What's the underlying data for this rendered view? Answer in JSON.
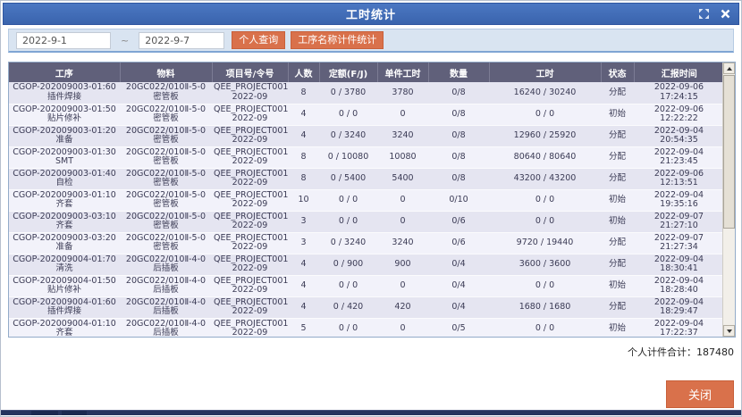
{
  "window": {
    "title": "工时统计"
  },
  "toolbar": {
    "date_from": "2022-9-1",
    "date_separator": "~",
    "date_to": "2022-9-7",
    "personal_query_button": "个人查询",
    "process_piece_stats_button": "工序名称计件统计"
  },
  "table": {
    "columns": [
      "工序",
      "物料",
      "项目号/令号",
      "人数",
      "定额(F/J)",
      "单件工时",
      "数量",
      "工时",
      "状态",
      "汇报时间"
    ],
    "rows": [
      {
        "process_code": "CGOP-202009003-01:60",
        "process_name": "插件焊接",
        "material_code": "20GC022/010Ⅱ-5-0",
        "material_name": "密管板",
        "project": "QEE_PROJECT001",
        "project_period": "2022-09",
        "people": "8",
        "quota": "0 / 3780",
        "unit_hours": "3780",
        "quantity": "0/8",
        "hours": "16240 / 30240",
        "status": "分配",
        "report_time": "2022-09-06 17:24:15"
      },
      {
        "process_code": "CGOP-202009003-01:50",
        "process_name": "贴片修补",
        "material_code": "20GC022/010Ⅱ-5-0",
        "material_name": "密管板",
        "project": "QEE_PROJECT001",
        "project_period": "2022-09",
        "people": "4",
        "quota": "0 / 0",
        "unit_hours": "0",
        "quantity": "0/8",
        "hours": "0 / 0",
        "status": "初始",
        "report_time": "2022-09-06 12:22:22"
      },
      {
        "process_code": "CGOP-202009003-01:20",
        "process_name": "准备",
        "material_code": "20GC022/010Ⅱ-5-0",
        "material_name": "密管板",
        "project": "QEE_PROJECT001",
        "project_period": "2022-09",
        "people": "4",
        "quota": "0 / 3240",
        "unit_hours": "3240",
        "quantity": "0/8",
        "hours": "12960 / 25920",
        "status": "分配",
        "report_time": "2022-09-04 20:54:35"
      },
      {
        "process_code": "CGOP-202009003-01:30",
        "process_name": "SMT",
        "material_code": "20GC022/010Ⅱ-5-0",
        "material_name": "密管板",
        "project": "QEE_PROJECT001",
        "project_period": "2022-09",
        "people": "8",
        "quota": "0 / 10080",
        "unit_hours": "10080",
        "quantity": "0/8",
        "hours": "80640 / 80640",
        "status": "分配",
        "report_time": "2022-09-04 21:23:45"
      },
      {
        "process_code": "CGOP-202009003-01:40",
        "process_name": "自检",
        "material_code": "20GC022/010Ⅱ-5-0",
        "material_name": "密管板",
        "project": "QEE_PROJECT001",
        "project_period": "2022-09",
        "people": "8",
        "quota": "0 / 5400",
        "unit_hours": "5400",
        "quantity": "0/8",
        "hours": "43200 / 43200",
        "status": "分配",
        "report_time": "2022-09-06 12:13:51"
      },
      {
        "process_code": "CGOP-202009003-01:10",
        "process_name": "齐套",
        "material_code": "20GC022/010Ⅱ-5-0",
        "material_name": "密管板",
        "project": "QEE_PROJECT001",
        "project_period": "2022-09",
        "people": "10",
        "quota": "0 / 0",
        "unit_hours": "0",
        "quantity": "0/10",
        "hours": "0 / 0",
        "status": "初始",
        "report_time": "2022-09-04 19:35:16"
      },
      {
        "process_code": "CGOP-202009003-03:10",
        "process_name": "齐套",
        "material_code": "20GC022/010Ⅱ-5-0",
        "material_name": "密管板",
        "project": "QEE_PROJECT001",
        "project_period": "2022-09",
        "people": "3",
        "quota": "0 / 0",
        "unit_hours": "0",
        "quantity": "0/6",
        "hours": "0 / 0",
        "status": "初始",
        "report_time": "2022-09-07 21:27:10"
      },
      {
        "process_code": "CGOP-202009003-03:20",
        "process_name": "准备",
        "material_code": "20GC022/010Ⅱ-5-0",
        "material_name": "密管板",
        "project": "QEE_PROJECT001",
        "project_period": "2022-09",
        "people": "3",
        "quota": "0 / 3240",
        "unit_hours": "3240",
        "quantity": "0/6",
        "hours": "9720 / 19440",
        "status": "分配",
        "report_time": "2022-09-07 21:27:34"
      },
      {
        "process_code": "CGOP-202009004-01:70",
        "process_name": "清洗",
        "material_code": "20GC022/010Ⅱ-4-0",
        "material_name": "后插板",
        "project": "QEE_PROJECT001",
        "project_period": "2022-09",
        "people": "4",
        "quota": "0 / 900",
        "unit_hours": "900",
        "quantity": "0/4",
        "hours": "3600 / 3600",
        "status": "分配",
        "report_time": "2022-09-04 18:30:41"
      },
      {
        "process_code": "CGOP-202009004-01:50",
        "process_name": "贴片修补",
        "material_code": "20GC022/010Ⅱ-4-0",
        "material_name": "后插板",
        "project": "QEE_PROJECT001",
        "project_period": "2022-09",
        "people": "4",
        "quota": "0 / 0",
        "unit_hours": "0",
        "quantity": "0/4",
        "hours": "0 / 0",
        "status": "初始",
        "report_time": "2022-09-04 18:28:40"
      },
      {
        "process_code": "CGOP-202009004-01:60",
        "process_name": "插件焊接",
        "material_code": "20GC022/010Ⅱ-4-0",
        "material_name": "后插板",
        "project": "QEE_PROJECT001",
        "project_period": "2022-09",
        "people": "4",
        "quota": "0 / 420",
        "unit_hours": "420",
        "quantity": "0/4",
        "hours": "1680 / 1680",
        "status": "分配",
        "report_time": "2022-09-04 18:29:47"
      },
      {
        "process_code": "CGOP-202009004-01:10",
        "process_name": "齐套",
        "material_code": "20GC022/010Ⅱ-4-0",
        "material_name": "后插板",
        "project": "QEE_PROJECT001",
        "project_period": "2022-09",
        "people": "5",
        "quota": "0 / 0",
        "unit_hours": "0",
        "quantity": "0/5",
        "hours": "0 / 0",
        "status": "初始",
        "report_time": "2022-09-04 17:22:37"
      }
    ]
  },
  "summary": {
    "text": "个人计件合计：187480"
  },
  "footer": {
    "close_button": "关闭"
  },
  "icons": {
    "maximize": "maximize-icon",
    "close": "close-icon"
  },
  "colors": {
    "accent_orange": "#d9714b",
    "titlebar_blue": "#3d69b1",
    "header_slate": "#60607a",
    "row_odd": "#e5e5f1",
    "row_even": "#f2f2fa"
  }
}
